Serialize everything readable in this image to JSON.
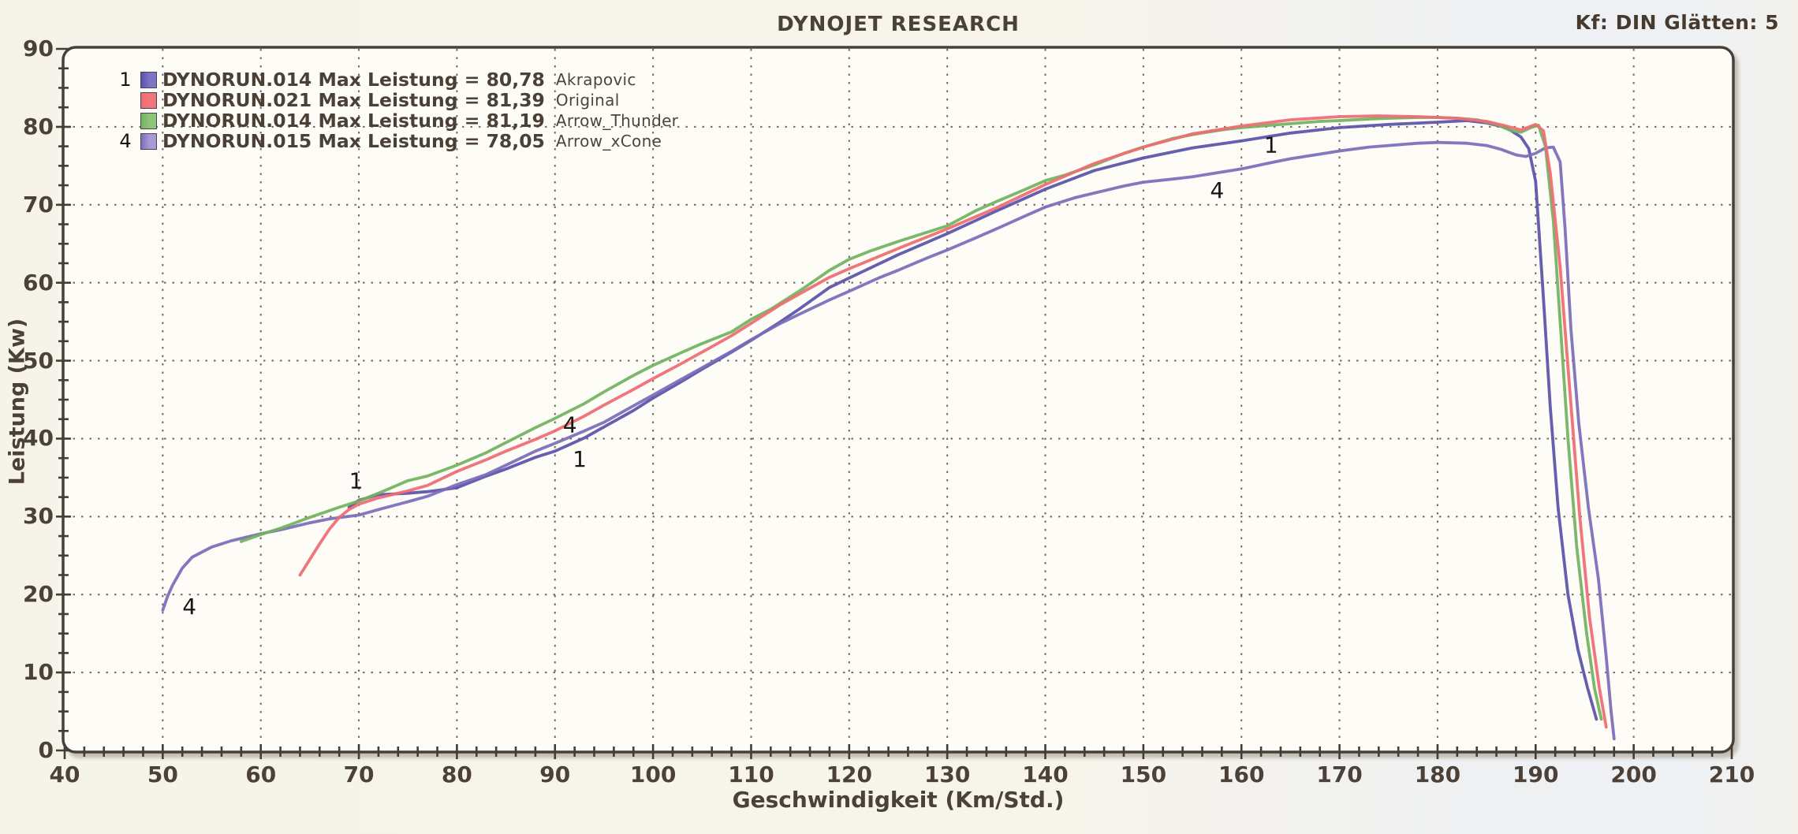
{
  "header": {
    "title": "DYNOJET RESEARCH",
    "settings": "Kf: DIN  Glätten: 5"
  },
  "legend_format": "{run} Max Leistung = {max}",
  "colors": {
    "page_bg": "#f7f4ec",
    "plot_bg": "#fdfcf7",
    "frame": "#46403a",
    "grid": "#4c453c",
    "text": "#4b4138"
  },
  "chart_data": {
    "type": "line",
    "title": "DYNOJET RESEARCH",
    "xlabel": "Geschwindigkeit (Km/Std.)",
    "ylabel": "Leistung (Kw)",
    "xlim": [
      40,
      210
    ],
    "ylim": [
      0,
      90
    ],
    "x_major_tick": 10,
    "x_minor_tick": 2,
    "y_major_tick": 10,
    "y_minor_tick": 2.5,
    "grid": "dotted major gridlines both axes",
    "legend_position": "top-left inside plot",
    "series": [
      {
        "run": "DYNORUN.014",
        "max_leistung": "80,78",
        "name": "Akrapovic",
        "marker": "1",
        "color": "#5a52a8",
        "swatch": "#7c74c6",
        "points": [
          [
            69,
            31.2
          ],
          [
            70,
            32.1
          ],
          [
            72,
            32.8
          ],
          [
            75,
            33.0
          ],
          [
            77,
            33.2
          ],
          [
            80,
            33.7
          ],
          [
            83,
            35.2
          ],
          [
            85,
            36.1
          ],
          [
            88,
            37.6
          ],
          [
            90,
            38.4
          ],
          [
            93,
            40.1
          ],
          [
            95,
            41.5
          ],
          [
            98,
            43.6
          ],
          [
            100,
            45.2
          ],
          [
            103,
            47.4
          ],
          [
            105,
            48.9
          ],
          [
            108,
            51.1
          ],
          [
            110,
            52.6
          ],
          [
            113,
            55.0
          ],
          [
            115,
            56.7
          ],
          [
            118,
            59.4
          ],
          [
            120,
            60.6
          ],
          [
            125,
            63.6
          ],
          [
            130,
            66.3
          ],
          [
            135,
            69.2
          ],
          [
            140,
            72.0
          ],
          [
            145,
            74.4
          ],
          [
            150,
            76.0
          ],
          [
            155,
            77.3
          ],
          [
            160,
            78.2
          ],
          [
            165,
            79.2
          ],
          [
            170,
            79.9
          ],
          [
            175,
            80.3
          ],
          [
            180,
            80.6
          ],
          [
            183,
            80.8
          ],
          [
            185,
            80.5
          ],
          [
            187,
            79.9
          ],
          [
            188.5,
            78.7
          ],
          [
            189.3,
            77.2
          ],
          [
            190,
            73
          ],
          [
            190.8,
            58
          ],
          [
            191.5,
            44
          ],
          [
            192.3,
            31
          ],
          [
            193.3,
            20
          ],
          [
            194.3,
            13
          ],
          [
            195.3,
            8
          ],
          [
            196.2,
            4
          ]
        ]
      },
      {
        "run": "DYNORUN.021",
        "max_leistung": "81,39",
        "name": "Original",
        "marker": "",
        "color": "#ee6d72",
        "swatch": "#f2757c",
        "points": [
          [
            64,
            22.5
          ],
          [
            65,
            24.5
          ],
          [
            66,
            26.5
          ],
          [
            67,
            28.4
          ],
          [
            68,
            29.9
          ],
          [
            69,
            30.9
          ],
          [
            70,
            31.6
          ],
          [
            72,
            32.4
          ],
          [
            75,
            33.3
          ],
          [
            77,
            34.0
          ],
          [
            80,
            35.8
          ],
          [
            83,
            37.3
          ],
          [
            85,
            38.4
          ],
          [
            88,
            39.9
          ],
          [
            90,
            41.0
          ],
          [
            93,
            42.9
          ],
          [
            95,
            44.3
          ],
          [
            98,
            46.3
          ],
          [
            100,
            47.7
          ],
          [
            103,
            49.7
          ],
          [
            105,
            51.1
          ],
          [
            108,
            53.2
          ],
          [
            110,
            54.8
          ],
          [
            113,
            57.2
          ],
          [
            115,
            58.6
          ],
          [
            118,
            60.7
          ],
          [
            120,
            61.8
          ],
          [
            125,
            64.4
          ],
          [
            130,
            66.9
          ],
          [
            135,
            69.6
          ],
          [
            140,
            72.6
          ],
          [
            145,
            75.3
          ],
          [
            150,
            77.4
          ],
          [
            155,
            79.1
          ],
          [
            160,
            80.1
          ],
          [
            165,
            80.9
          ],
          [
            170,
            81.3
          ],
          [
            174,
            81.4
          ],
          [
            178,
            81.3
          ],
          [
            182,
            81.1
          ],
          [
            185,
            80.7
          ],
          [
            187,
            80.1
          ],
          [
            188.5,
            79.6
          ],
          [
            190,
            80.3
          ],
          [
            190.8,
            79.5
          ],
          [
            191.5,
            74
          ],
          [
            192.5,
            62
          ],
          [
            193.5,
            46
          ],
          [
            194.5,
            30
          ],
          [
            195.5,
            17
          ],
          [
            196.5,
            8
          ],
          [
            197.2,
            3
          ]
        ]
      },
      {
        "run": "DYNORUN.014",
        "max_leistung": "81,19",
        "name": "Arrow_Thunder",
        "marker": "",
        "color": "#72b35f",
        "swatch": "#8cc479",
        "points": [
          [
            58,
            26.8
          ],
          [
            60,
            27.7
          ],
          [
            62,
            28.5
          ],
          [
            65,
            29.9
          ],
          [
            68,
            31.2
          ],
          [
            70,
            32.0
          ],
          [
            72,
            33.0
          ],
          [
            75,
            34.6
          ],
          [
            77,
            35.2
          ],
          [
            80,
            36.6
          ],
          [
            83,
            38.2
          ],
          [
            85,
            39.5
          ],
          [
            88,
            41.4
          ],
          [
            90,
            42.6
          ],
          [
            93,
            44.5
          ],
          [
            95,
            46.0
          ],
          [
            98,
            48.1
          ],
          [
            100,
            49.4
          ],
          [
            103,
            51.1
          ],
          [
            105,
            52.2
          ],
          [
            108,
            53.7
          ],
          [
            110,
            55.3
          ],
          [
            112,
            56.6
          ],
          [
            115,
            59.0
          ],
          [
            118,
            61.6
          ],
          [
            120,
            63.0
          ],
          [
            122,
            64.0
          ],
          [
            125,
            65.3
          ],
          [
            128,
            66.5
          ],
          [
            130,
            67.3
          ],
          [
            133,
            69.3
          ],
          [
            135,
            70.4
          ],
          [
            138,
            72.0
          ],
          [
            140,
            73.1
          ],
          [
            142,
            73.8
          ],
          [
            145,
            75.1
          ],
          [
            148,
            76.6
          ],
          [
            150,
            77.4
          ],
          [
            153,
            78.5
          ],
          [
            155,
            79.0
          ],
          [
            158,
            79.6
          ],
          [
            160,
            79.9
          ],
          [
            163,
            80.2
          ],
          [
            165,
            80.4
          ],
          [
            168,
            80.7
          ],
          [
            170,
            80.8
          ],
          [
            173,
            81.0
          ],
          [
            175,
            81.1
          ],
          [
            178,
            81.2
          ],
          [
            180,
            81.2
          ],
          [
            182,
            81.1
          ],
          [
            184,
            80.9
          ],
          [
            186,
            80.3
          ],
          [
            187.5,
            79.5
          ],
          [
            188.5,
            79.3
          ],
          [
            189.5,
            79.9
          ],
          [
            190.3,
            80.2
          ],
          [
            191,
            77.5
          ],
          [
            191.8,
            68
          ],
          [
            192.5,
            55
          ],
          [
            193.3,
            40
          ],
          [
            194.2,
            26
          ],
          [
            195.2,
            15
          ],
          [
            196,
            8
          ],
          [
            196.7,
            4
          ]
        ]
      },
      {
        "run": "DYNORUN.015",
        "max_leistung": "78,05",
        "name": "Arrow_xCone",
        "marker": "4",
        "color": "#7b6db9",
        "swatch": "#a79ad6",
        "points": [
          [
            50,
            18.0
          ],
          [
            50.5,
            19.8
          ],
          [
            51,
            21.2
          ],
          [
            52,
            23.4
          ],
          [
            53,
            24.8
          ],
          [
            55,
            26.1
          ],
          [
            57,
            26.9
          ],
          [
            60,
            27.8
          ],
          [
            62,
            28.3
          ],
          [
            65,
            29.2
          ],
          [
            67,
            29.7
          ],
          [
            70,
            30.2
          ],
          [
            72,
            30.9
          ],
          [
            75,
            31.9
          ],
          [
            77,
            32.6
          ],
          [
            80,
            34.1
          ],
          [
            83,
            35.4
          ],
          [
            85,
            36.6
          ],
          [
            88,
            38.4
          ],
          [
            90,
            39.4
          ],
          [
            93,
            41.0
          ],
          [
            95,
            42.1
          ],
          [
            98,
            44.2
          ],
          [
            100,
            45.6
          ],
          [
            103,
            47.7
          ],
          [
            105,
            49.1
          ],
          [
            108,
            51.2
          ],
          [
            110,
            52.7
          ],
          [
            113,
            54.8
          ],
          [
            115,
            56.0
          ],
          [
            118,
            57.8
          ],
          [
            120,
            58.9
          ],
          [
            123,
            60.6
          ],
          [
            125,
            61.6
          ],
          [
            128,
            63.2
          ],
          [
            130,
            64.2
          ],
          [
            133,
            65.8
          ],
          [
            135,
            66.9
          ],
          [
            138,
            68.6
          ],
          [
            140,
            69.7
          ],
          [
            143,
            70.9
          ],
          [
            145,
            71.5
          ],
          [
            148,
            72.4
          ],
          [
            150,
            72.9
          ],
          [
            153,
            73.3
          ],
          [
            155,
            73.6
          ],
          [
            158,
            74.2
          ],
          [
            160,
            74.6
          ],
          [
            163,
            75.4
          ],
          [
            165,
            75.9
          ],
          [
            168,
            76.5
          ],
          [
            170,
            76.9
          ],
          [
            173,
            77.4
          ],
          [
            175,
            77.6
          ],
          [
            178,
            77.9
          ],
          [
            180,
            78.0
          ],
          [
            183,
            77.9
          ],
          [
            185,
            77.6
          ],
          [
            186.5,
            77.1
          ],
          [
            188,
            76.4
          ],
          [
            189,
            76.2
          ],
          [
            190,
            76.6
          ],
          [
            191,
            77.3
          ],
          [
            191.8,
            77.4
          ],
          [
            192.5,
            75.5
          ],
          [
            193,
            67
          ],
          [
            193.6,
            54
          ],
          [
            194.4,
            42
          ],
          [
            195.4,
            31
          ],
          [
            196.4,
            22
          ],
          [
            197.2,
            12
          ],
          [
            197.7,
            5
          ],
          [
            198,
            1.5
          ]
        ]
      }
    ],
    "annotations": [
      {
        "label": "4",
        "x": 52.0,
        "y": 17.5
      },
      {
        "label": "1",
        "x": 69.0,
        "y": 33.6
      },
      {
        "label": "4",
        "x": 90.8,
        "y": 40.8
      },
      {
        "label": "1",
        "x": 91.8,
        "y": 36.4
      },
      {
        "label": "4",
        "x": 156.8,
        "y": 70.9
      },
      {
        "label": "1",
        "x": 162.3,
        "y": 76.7
      }
    ]
  }
}
